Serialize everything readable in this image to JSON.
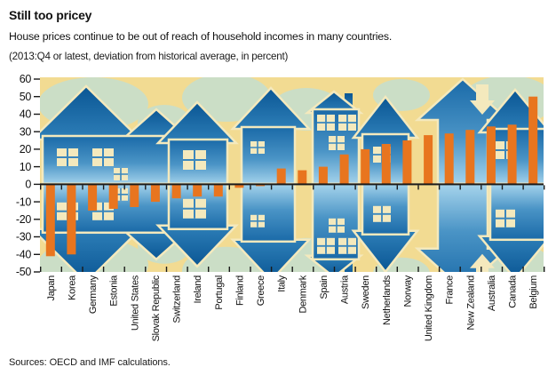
{
  "header": {
    "title": "Still too pricey",
    "subtitle": "House prices continue to be out of reach of household incomes in many countries.",
    "note": "(2013:Q4 or latest, deviation from historical average, in percent)"
  },
  "footer": {
    "source": "Sources: OECD and IMF calculations."
  },
  "colors": {
    "bar_orange": "#e8751f",
    "plot_background_tan": "#f2db92",
    "cloud_sage": "#cbdec6",
    "house_roof_dark": "#0a5694",
    "house_blue_mid": "#2e7fb8",
    "house_blue_light": "#a6d4ec",
    "outline_cream": "#f4e9bd",
    "axis_black": "#1a1a1a"
  },
  "chart_data": {
    "type": "bar",
    "title": "Still too pricey",
    "subtitle": "House prices continue to be out of reach of household incomes in many countries.",
    "unit_note": "(2013:Q4 or latest, deviation from historical average, in percent)",
    "source": "Sources: OECD and IMF calculations.",
    "categories": [
      "Japan",
      "Korea",
      "Germany",
      "Estonia",
      "United States",
      "Slovak Republic",
      "Switzerland",
      "Ireland",
      "Portugal",
      "Finland",
      "Greece",
      "Italy",
      "Denmark",
      "Spain",
      "Austria",
      "Sweden",
      "Netherlands",
      "Norway",
      "United Kingdom",
      "France",
      "New Zealand",
      "Australia",
      "Canada",
      "Belgium"
    ],
    "values": [
      -41,
      -40,
      -15,
      -14,
      -13,
      -10,
      -8,
      -7,
      -7,
      -2,
      -1,
      9,
      8,
      10,
      17,
      20,
      23,
      25,
      28,
      29,
      31,
      33,
      34,
      50
    ],
    "xlabel": "",
    "ylabel": "",
    "ylim": [
      -50,
      60
    ],
    "ytick_step": 10,
    "grid": false,
    "legend_position": "none"
  }
}
